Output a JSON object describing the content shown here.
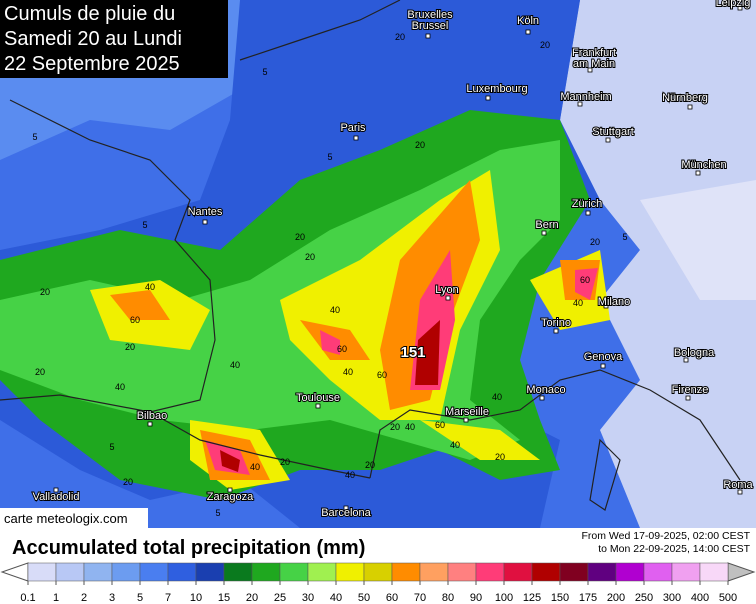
{
  "title": [
    "Cumuls de pluie du",
    "Samedi 20 au Lundi",
    "22 Septembre 2025"
  ],
  "cities": [
    [
      "Bruxelles",
      "Brussel"
    ],
    [
      "Köln"
    ],
    [
      "Frankfurt",
      "am Main"
    ],
    [
      "Luxembourg"
    ],
    [
      "Mannheim"
    ],
    [
      "Nürnberg"
    ],
    [
      "Paris"
    ],
    [
      "Stuttgart"
    ],
    [
      "München"
    ],
    [
      "Nantes"
    ],
    [
      "Zürich"
    ],
    [
      "Bern"
    ],
    [
      "Lyon"
    ],
    [
      "Milano"
    ],
    [
      "Torino"
    ],
    [
      "Genova"
    ],
    [
      "Bologna"
    ],
    [
      "Monaco"
    ],
    [
      "Firenze"
    ],
    [
      "Toulouse"
    ],
    [
      "Marseille"
    ],
    [
      "Bilbao"
    ],
    [
      "Zaragoza"
    ],
    [
      "Valladolid"
    ],
    [
      "Barcelona"
    ],
    [
      "Roma"
    ],
    [
      "Leipzig"
    ]
  ],
  "maximum": 151,
  "contour_labels": [
    5,
    20,
    20,
    5,
    5,
    20,
    5,
    20,
    20,
    40,
    60,
    20,
    40,
    20,
    40,
    40,
    60,
    40,
    60,
    20,
    40,
    60,
    40,
    20,
    20,
    40,
    60,
    40,
    20,
    20,
    40,
    20,
    5,
    5,
    40,
    20,
    5
  ],
  "credit": "carte meteologix.com",
  "legend": {
    "title": "Accumulated total precipitation (mm)",
    "period": [
      "From Wed 17-09-2025, 02:00 CEST",
      "to Mon 22-09-2025, 14:00 CEST"
    ],
    "ticks": [
      0.1,
      1,
      2,
      3,
      5,
      7,
      10,
      15,
      20,
      25,
      30,
      40,
      50,
      60,
      70,
      80,
      90,
      100,
      125,
      150,
      175,
      200,
      250,
      300,
      400,
      500
    ],
    "colors": [
      "#d8dcf8",
      "#b8c8f5",
      "#90b4f0",
      "#6c9cf0",
      "#4a7ef0",
      "#2f5fe0",
      "#1a3fb0",
      "#0a7a1e",
      "#1fa81f",
      "#46d246",
      "#a0f050",
      "#f0f000",
      "#d8d000",
      "#ff8c00",
      "#ffa060",
      "#ff8080",
      "#ff3c78",
      "#e01040",
      "#b00000",
      "#800020",
      "#600080",
      "#b000d0",
      "#e060f0",
      "#f0a0f0",
      "#f8d8f8"
    ]
  }
}
